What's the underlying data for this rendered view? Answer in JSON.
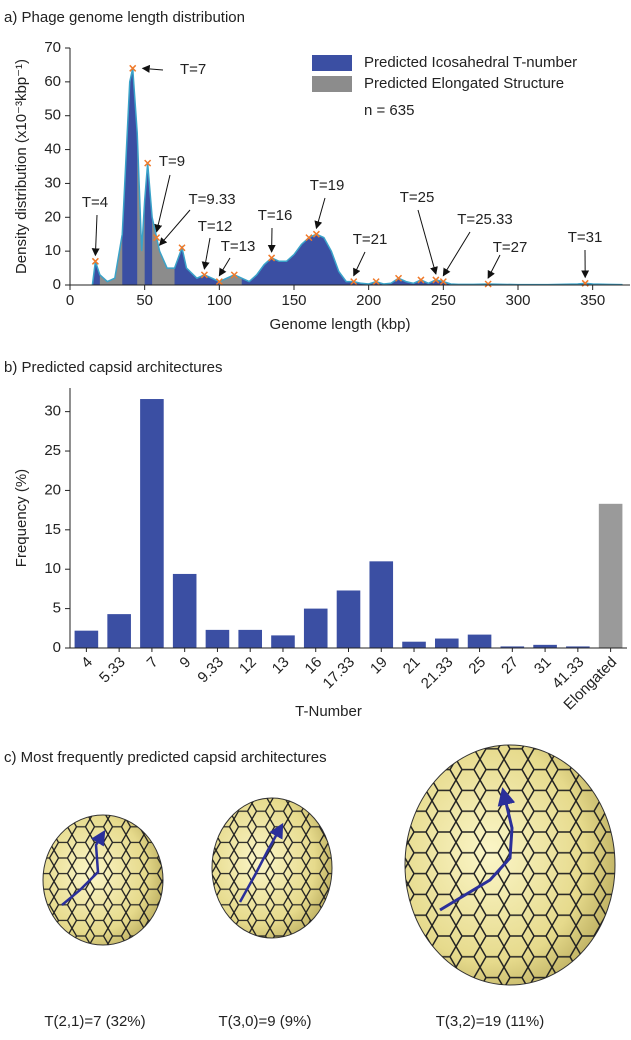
{
  "chart_data": [
    {
      "type": "area",
      "title": "a) Phage genome length distribution",
      "xlabel": "Genome length (kbp)",
      "ylabel": "Density distribution (x10⁻³kbp⁻¹)",
      "xlim": [
        0,
        375
      ],
      "ylim": [
        0,
        70
      ],
      "xticks": [
        0,
        50,
        100,
        150,
        200,
        250,
        300,
        350
      ],
      "yticks": [
        0,
        10,
        20,
        30,
        40,
        50,
        60,
        70
      ],
      "x": [
        15,
        17,
        20,
        25,
        30,
        35,
        40,
        42,
        45,
        48,
        50,
        52,
        55,
        58,
        60,
        65,
        70,
        75,
        78,
        85,
        90,
        95,
        100,
        105,
        110,
        115,
        120,
        125,
        130,
        135,
        140,
        145,
        150,
        155,
        160,
        165,
        170,
        175,
        180,
        185,
        190,
        195,
        200,
        205,
        210,
        215,
        220,
        225,
        230,
        235,
        240,
        245,
        250,
        255,
        260,
        270,
        280,
        290,
        300,
        320,
        340,
        345,
        350,
        360,
        370
      ],
      "series": [
        {
          "name": "Predicted Icosahedral T-number",
          "color": "#3b4fa3",
          "values": [
            0,
            7,
            3,
            1,
            2,
            15,
            60,
            64,
            45,
            10,
            25,
            36,
            20,
            14,
            10,
            5,
            5,
            11,
            5,
            2,
            3,
            2,
            1,
            2,
            3,
            2,
            1,
            3,
            6,
            8,
            7,
            7,
            9,
            12,
            14,
            15,
            14,
            10,
            4,
            1,
            1,
            0.5,
            0.3,
            1,
            0.3,
            0.5,
            2,
            1,
            0.5,
            1.5,
            0.5,
            1.5,
            1,
            0.3,
            0.2,
            0.2,
            0.3,
            0.2,
            0.1,
            0.1,
            0.3,
            0.5,
            0.3,
            0.2,
            0.1
          ]
        },
        {
          "name": "Predicted Elongated Structure",
          "color": "#8c8c8c",
          "values": [
            null,
            null,
            3,
            1,
            2,
            15,
            null,
            null,
            45,
            10,
            25,
            null,
            20,
            14,
            10,
            5,
            5,
            null,
            null,
            null,
            null,
            null,
            1,
            2,
            3,
            2,
            null,
            null,
            null,
            null,
            null,
            null,
            null,
            null,
            null,
            null,
            null,
            null,
            null,
            null,
            null,
            null,
            null,
            null,
            null,
            null,
            null,
            null,
            null,
            null,
            null,
            null,
            null,
            null,
            null,
            null,
            null,
            null,
            null,
            null,
            null,
            null,
            null,
            null,
            null
          ]
        }
      ],
      "line_color": "#3aa3c9",
      "marker_color": "#f07a2a",
      "n_label": "n = 635",
      "annotations": [
        {
          "text": "T=4",
          "x": 17,
          "y": 7
        },
        {
          "text": "T=7",
          "x": 42,
          "y": 64
        },
        {
          "text": "T=9",
          "x": 58,
          "y": 14
        },
        {
          "text": "T=9.33",
          "x": 60,
          "y": 10
        },
        {
          "text": "T=12",
          "x": 90,
          "y": 3
        },
        {
          "text": "T=13",
          "x": 100,
          "y": 1
        },
        {
          "text": "T=16",
          "x": 135,
          "y": 8
        },
        {
          "text": "T=19",
          "x": 165,
          "y": 15
        },
        {
          "text": "T=21",
          "x": 190,
          "y": 1
        },
        {
          "text": "T=25",
          "x": 245,
          "y": 1.5
        },
        {
          "text": "T=25.33",
          "x": 250,
          "y": 1
        },
        {
          "text": "T=27",
          "x": 280,
          "y": 0.3
        },
        {
          "text": "T=31",
          "x": 345,
          "y": 0.5
        }
      ],
      "peaks": [
        [
          17,
          7
        ],
        [
          42,
          64
        ],
        [
          52,
          36
        ],
        [
          58,
          14
        ],
        [
          75,
          11
        ],
        [
          90,
          3
        ],
        [
          100,
          1
        ],
        [
          110,
          3
        ],
        [
          135,
          8
        ],
        [
          160,
          14
        ],
        [
          165,
          15
        ],
        [
          190,
          1
        ],
        [
          205,
          1
        ],
        [
          220,
          2
        ],
        [
          235,
          1.5
        ],
        [
          245,
          1.5
        ],
        [
          250,
          1
        ],
        [
          280,
          0.3
        ],
        [
          345,
          0.5
        ]
      ]
    },
    {
      "type": "bar",
      "title": "b) Predicted capsid architectures",
      "xlabel": "T-Number",
      "ylabel": "Frequency (%)",
      "categories": [
        "4",
        "5.33",
        "7",
        "9",
        "9.33",
        "12",
        "13",
        "16",
        "17.33",
        "19",
        "21",
        "21.33",
        "25",
        "27",
        "31",
        "41.33",
        "Elongated"
      ],
      "values": [
        2.2,
        4.3,
        31.6,
        9.4,
        2.3,
        2.3,
        1.6,
        5.0,
        7.3,
        11.0,
        0.8,
        1.2,
        1.7,
        0.2,
        0.4,
        0.2,
        18.3
      ],
      "colors": [
        "#3b4fa3",
        "#3b4fa3",
        "#3b4fa3",
        "#3b4fa3",
        "#3b4fa3",
        "#3b4fa3",
        "#3b4fa3",
        "#3b4fa3",
        "#3b4fa3",
        "#3b4fa3",
        "#3b4fa3",
        "#3b4fa3",
        "#3b4fa3",
        "#3b4fa3",
        "#3b4fa3",
        "#3b4fa3",
        "#9a9a9a"
      ],
      "ylim": [
        0,
        33
      ],
      "yticks": [
        0,
        5,
        10,
        15,
        20,
        25,
        30
      ]
    }
  ],
  "panel_c": {
    "title": "c) Most frequently predicted capsid architectures",
    "captions": [
      "T(2,1)=7 (32%)",
      "T(3,0)=9 (9%)",
      "T(3,2)=19 (11%)"
    ]
  }
}
